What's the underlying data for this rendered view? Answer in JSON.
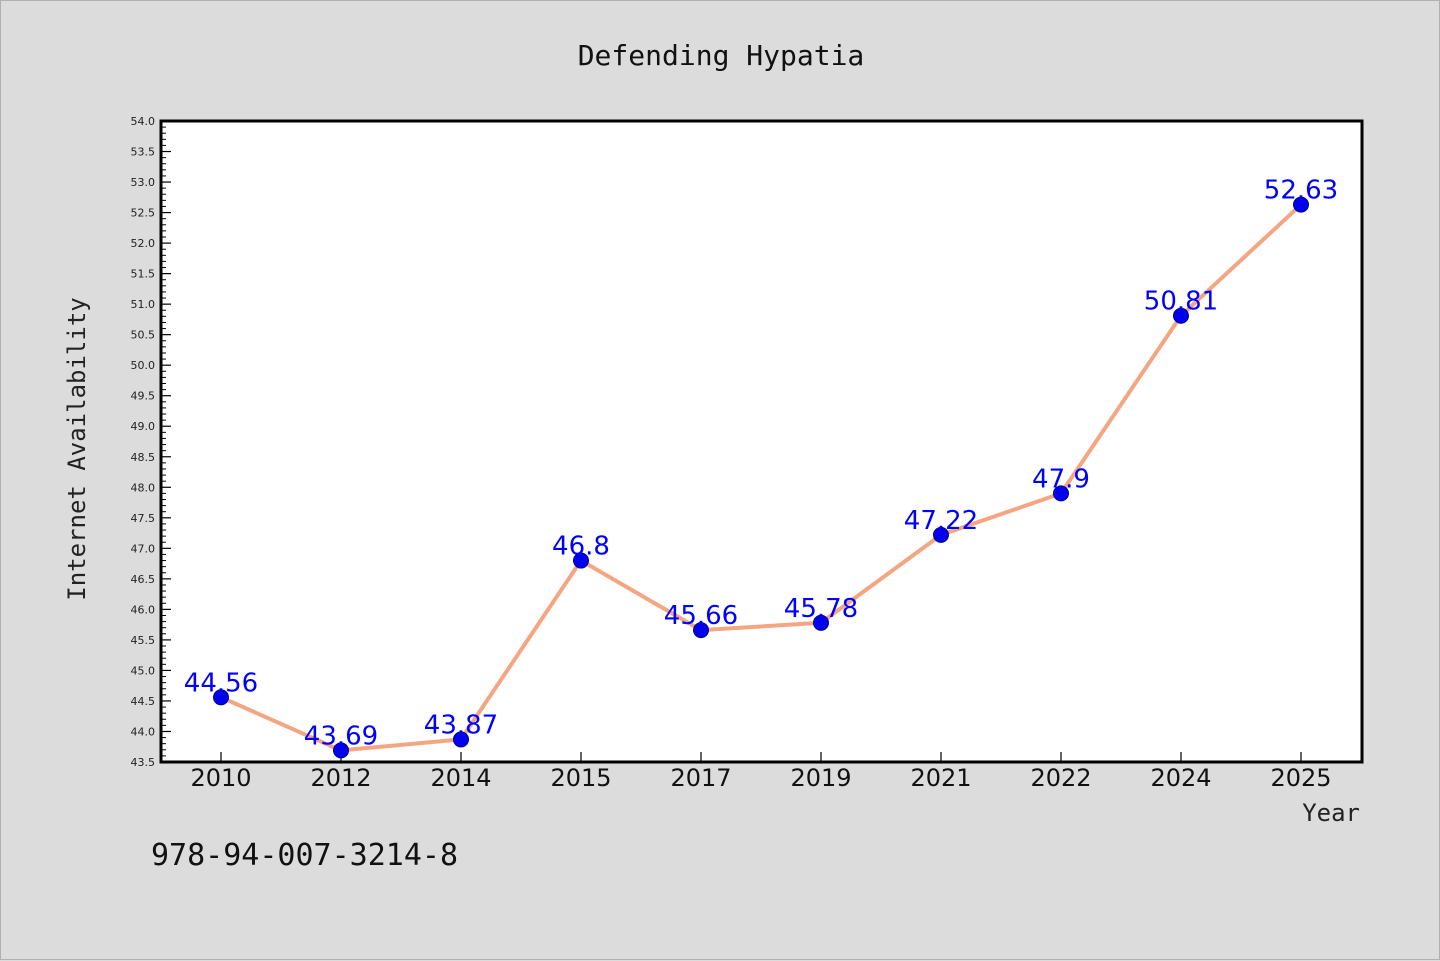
{
  "chart_data": {
    "type": "line",
    "title": "Defending Hypatia",
    "xlabel": "Year",
    "ylabel": "Internet Availability",
    "categories": [
      "2010",
      "2012",
      "2014",
      "2015",
      "2017",
      "2019",
      "2021",
      "2022",
      "2024",
      "2025"
    ],
    "values": [
      44.56,
      43.69,
      43.87,
      46.8,
      45.66,
      45.78,
      47.22,
      47.9,
      50.81,
      52.63
    ],
    "value_labels": [
      "44.56",
      "43.69",
      "43.87",
      "46.8",
      "45.66",
      "45.78",
      "47.22",
      "47.9",
      "50.81",
      "52.63"
    ],
    "ylim": [
      43.5,
      54.0
    ],
    "yticks": [
      "43.5",
      "44.0",
      "44.5",
      "45.0",
      "45.5",
      "46.0",
      "46.5",
      "47.0",
      "47.5",
      "48.0",
      "48.5",
      "49.0",
      "49.5",
      "50.0",
      "50.5",
      "51.0",
      "51.5",
      "52.0",
      "52.5",
      "53.0",
      "53.5",
      "54.0"
    ],
    "grid": false,
    "line_color": "#f4a582",
    "marker_color": "#0000ee",
    "label_color": "#0000ff"
  },
  "footer": {
    "isbn": "978-94-007-3214-8"
  }
}
